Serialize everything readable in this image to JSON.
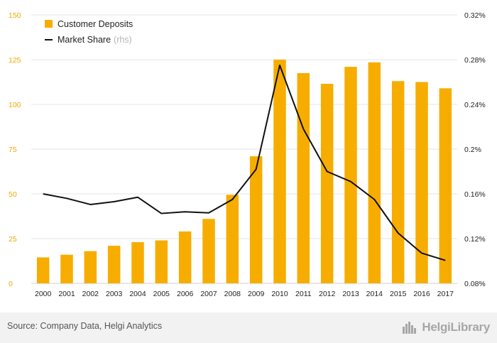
{
  "chart_data": {
    "type": "bar",
    "categories": [
      "2000",
      "2001",
      "2002",
      "2003",
      "2004",
      "2005",
      "2006",
      "2007",
      "2008",
      "2009",
      "2010",
      "2011",
      "2012",
      "2013",
      "2014",
      "2015",
      "2016",
      "2017"
    ],
    "series": [
      {
        "name": "Customer Deposits",
        "type": "bar",
        "axis": "left",
        "values": [
          14.5,
          16,
          18,
          21,
          23,
          24,
          29,
          36,
          49.5,
          71,
          125,
          117.5,
          111.5,
          121,
          123.5,
          113,
          112.5,
          109
        ]
      },
      {
        "name": "Market Share",
        "type": "line",
        "axis": "right",
        "values": [
          0.16,
          0.156,
          0.1505,
          0.153,
          0.157,
          0.1425,
          0.144,
          0.143,
          0.155,
          0.182,
          0.275,
          0.218,
          0.18,
          0.171,
          0.155,
          0.125,
          0.107,
          0.1005
        ]
      }
    ],
    "legend": [
      {
        "label": "Customer Deposits",
        "suffix": ""
      },
      {
        "label": "Market Share",
        "suffix": "(rhs)"
      }
    ],
    "ylim": [
      0,
      150
    ],
    "yticks": [
      "0",
      "25",
      "50",
      "75",
      "100",
      "125",
      "150"
    ],
    "yticks_values": [
      0,
      25,
      50,
      75,
      100,
      125,
      150
    ],
    "y2lim": [
      0.08,
      0.32
    ],
    "y2ticks": [
      "0.08%",
      "0.12%",
      "0.16%",
      "0.2%",
      "0.24%",
      "0.28%",
      "0.32%"
    ],
    "y2ticks_values": [
      0.08,
      0.12,
      0.16,
      0.2,
      0.24,
      0.28,
      0.32
    ],
    "grid": true,
    "legend_position": "top-left",
    "colors": {
      "bar": "#f7ad00",
      "line": "#111111",
      "left_axis_text": "#f0a800",
      "right_axis_text": "#222222",
      "grid": "#e6e6e6"
    }
  },
  "footer": {
    "source": "Source: Company Data, Helgi Analytics",
    "brand": "HelgiLibrary",
    "brand_icon": "city-skyline-icon"
  }
}
